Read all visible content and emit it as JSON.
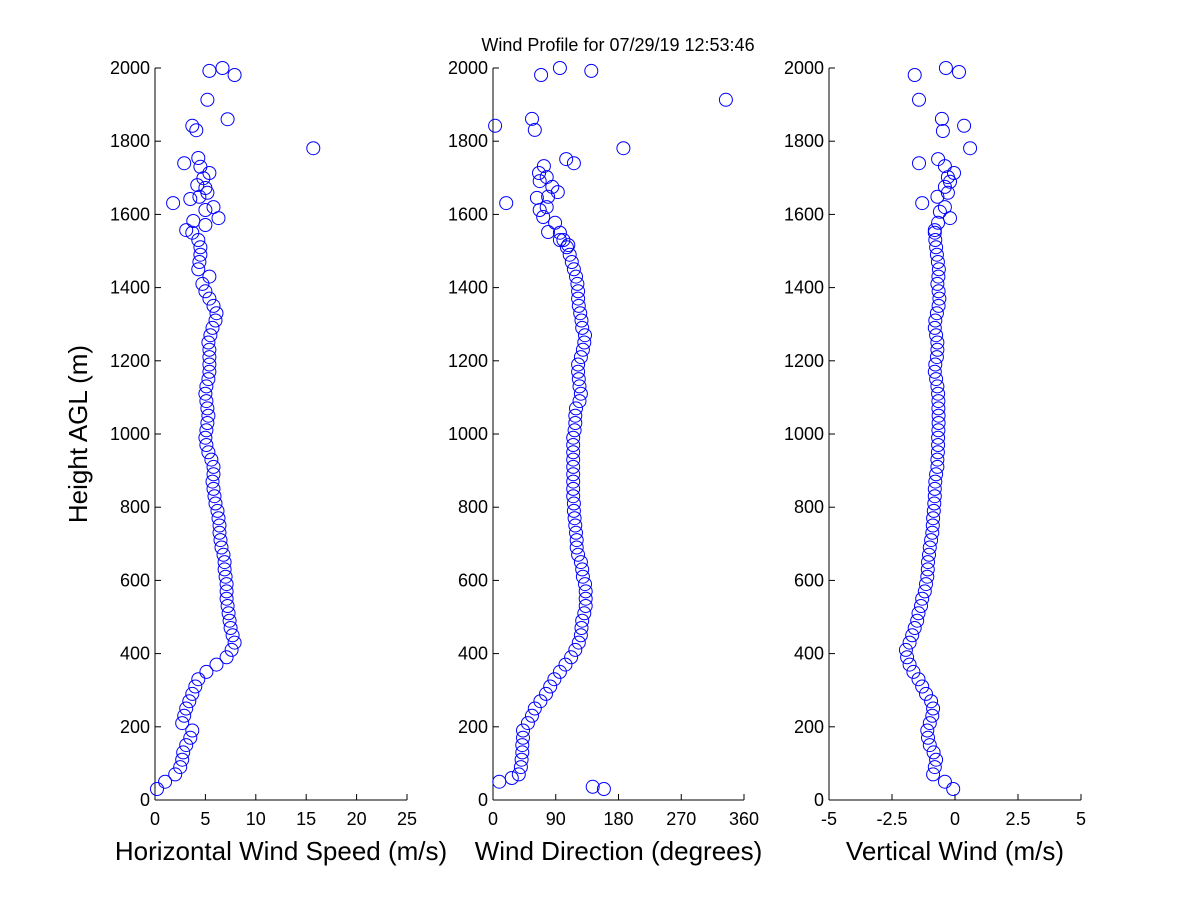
{
  "chart_data": [
    {
      "type": "scatter",
      "title": "Wind Profile for  07/29/19 12:53:46",
      "xlabel": "Horizontal Wind Speed (m/s)",
      "ylabel": "Height AGL (m)",
      "xlim": [
        0,
        25
      ],
      "ylim": [
        0,
        2000
      ],
      "xticks": [
        0,
        5,
        10,
        15,
        20,
        25
      ],
      "xtick_labels": [
        "0",
        "5",
        "10",
        "15",
        "20",
        "25"
      ],
      "yticks": [
        0,
        200,
        400,
        600,
        800,
        1000,
        1200,
        1400,
        1600,
        1800,
        2000
      ],
      "ytick_labels": [
        "0",
        "200",
        "400",
        "600",
        "800",
        "1000",
        "1200",
        "1400",
        "1600",
        "1800",
        "2000"
      ],
      "marker": "open-circle",
      "color": "#0000ff",
      "heights": [
        30,
        50,
        70,
        90,
        110,
        130,
        150,
        170,
        190,
        210,
        230,
        250,
        270,
        290,
        310,
        330,
        350,
        370,
        390,
        410,
        430,
        450,
        470,
        490,
        510,
        530,
        550,
        570,
        590,
        610,
        630,
        650,
        670,
        690,
        710,
        730,
        750,
        770,
        790,
        810,
        830,
        850,
        870,
        890,
        910,
        930,
        950,
        970,
        990,
        1010,
        1030,
        1050,
        1070,
        1090,
        1110,
        1130,
        1150,
        1170,
        1190,
        1210,
        1230,
        1250,
        1270,
        1290,
        1310,
        1330,
        1350,
        1370,
        1390,
        1410,
        1430,
        1450,
        1470,
        1490,
        1510,
        1530,
        1550
      ],
      "values": [
        0.2,
        1.0,
        2.0,
        2.5,
        2.7,
        2.8,
        3.1,
        3.5,
        3.7,
        2.7,
        2.9,
        3.1,
        3.4,
        3.7,
        4.0,
        4.3,
        5.1,
        6.1,
        7.1,
        7.6,
        7.9,
        7.7,
        7.5,
        7.4,
        7.3,
        7.2,
        7.1,
        7.1,
        7.1,
        7.0,
        6.9,
        6.9,
        6.8,
        6.6,
        6.5,
        6.4,
        6.4,
        6.3,
        6.2,
        6.0,
        5.9,
        5.8,
        5.7,
        5.8,
        5.8,
        5.6,
        5.3,
        5.1,
        5.0,
        5.1,
        5.2,
        5.3,
        5.2,
        5.1,
        5.0,
        5.1,
        5.3,
        5.4,
        5.4,
        5.4,
        5.4,
        5.3,
        5.5,
        5.7,
        6.0,
        6.1,
        5.8,
        5.4,
        5.0,
        4.7,
        5.4,
        4.3,
        4.4,
        4.5,
        4.5,
        4.3,
        3.7
      ],
      "extra_points": [
        [
          5.4,
          1992
        ],
        [
          6.7,
          2000
        ],
        [
          7.9,
          1981
        ],
        [
          5.2,
          1913
        ],
        [
          7.2,
          1860
        ],
        [
          3.7,
          1842
        ],
        [
          4.1,
          1830
        ],
        [
          15.7,
          1781
        ],
        [
          2.9,
          1740
        ],
        [
          4.3,
          1754
        ],
        [
          4.5,
          1730
        ],
        [
          5.4,
          1713
        ],
        [
          4.8,
          1699
        ],
        [
          4.2,
          1680
        ],
        [
          5.0,
          1672
        ],
        [
          5.2,
          1659
        ],
        [
          3.5,
          1642
        ],
        [
          4.4,
          1648
        ],
        [
          1.8,
          1631
        ],
        [
          5.8,
          1620
        ],
        [
          5.0,
          1612
        ],
        [
          6.3,
          1590
        ],
        [
          3.8,
          1582
        ],
        [
          5.0,
          1571
        ],
        [
          3.1,
          1557
        ]
      ]
    },
    {
      "type": "scatter",
      "xlabel": "Wind Direction (degrees)",
      "xlim": [
        0,
        360
      ],
      "ylim": [
        0,
        2000
      ],
      "xticks": [
        0,
        90,
        180,
        270,
        360
      ],
      "xtick_labels": [
        "0",
        "90",
        "180",
        "270",
        "360"
      ],
      "yticks": [
        0,
        200,
        400,
        600,
        800,
        1000,
        1200,
        1400,
        1600,
        1800,
        2000
      ],
      "ytick_labels": [
        "0",
        "200",
        "400",
        "600",
        "800",
        "1000",
        "1200",
        "1400",
        "1600",
        "1800",
        "2000"
      ],
      "marker": "open-circle",
      "color": "#0000ff",
      "values": [
        159,
        9,
        37,
        40,
        41,
        42,
        42,
        43,
        43,
        50,
        56,
        60,
        68,
        76,
        82,
        88,
        96,
        104,
        112,
        118,
        123,
        126,
        127,
        128,
        131,
        133,
        133,
        133,
        132,
        129,
        128,
        126,
        122,
        120,
        120,
        119,
        118,
        117,
        116,
        116,
        115,
        115,
        115,
        115,
        115,
        115,
        115,
        115,
        115,
        117,
        118,
        118,
        119,
        124,
        126,
        124,
        123,
        122,
        122,
        126,
        129,
        131,
        132,
        128,
        127,
        125,
        123,
        122,
        122,
        121,
        119,
        116,
        113,
        110,
        106,
        101,
        96
      ],
      "extra_points": [
        [
          143,
          36
        ],
        [
          27,
          60
        ],
        [
          69,
          1981
        ],
        [
          96,
          2000
        ],
        [
          141,
          1992
        ],
        [
          334,
          1913
        ],
        [
          56,
          1861
        ],
        [
          60,
          1831
        ],
        [
          3,
          1842
        ],
        [
          187,
          1781
        ],
        [
          105,
          1751
        ],
        [
          116,
          1740
        ],
        [
          73,
          1732
        ],
        [
          66,
          1713
        ],
        [
          77,
          1702
        ],
        [
          67,
          1691
        ],
        [
          85,
          1675
        ],
        [
          93,
          1661
        ],
        [
          79,
          1648
        ],
        [
          63,
          1645
        ],
        [
          19,
          1631
        ],
        [
          77,
          1620
        ],
        [
          67,
          1612
        ],
        [
          72,
          1593
        ],
        [
          89,
          1577
        ],
        [
          79,
          1552
        ],
        [
          96,
          1530
        ],
        [
          108,
          1516
        ]
      ]
    },
    {
      "type": "scatter",
      "xlabel": "Vertical Wind (m/s)",
      "xlim": [
        -5,
        5
      ],
      "ylim": [
        0,
        2000
      ],
      "xticks": [
        -5,
        -2.5,
        0,
        2.5,
        5
      ],
      "xtick_labels": [
        "-5",
        "-2.5",
        "0",
        "2.5",
        "5"
      ],
      "yticks": [
        0,
        200,
        400,
        600,
        800,
        1000,
        1200,
        1400,
        1600,
        1800,
        2000
      ],
      "ytick_labels": [
        "0",
        "200",
        "400",
        "600",
        "800",
        "1000",
        "1200",
        "1400",
        "1600",
        "1800",
        "2000"
      ],
      "marker": "open-circle",
      "color": "#0000ff",
      "values": [
        -0.07,
        -0.4,
        -0.87,
        -0.8,
        -0.75,
        -0.85,
        -1.0,
        -1.07,
        -1.1,
        -1.0,
        -0.9,
        -0.87,
        -0.95,
        -1.15,
        -1.3,
        -1.45,
        -1.65,
        -1.8,
        -1.9,
        -1.95,
        -1.8,
        -1.7,
        -1.6,
        -1.5,
        -1.45,
        -1.35,
        -1.3,
        -1.2,
        -1.15,
        -1.1,
        -1.08,
        -1.07,
        -1.03,
        -1.0,
        -0.95,
        -0.9,
        -0.88,
        -0.87,
        -0.84,
        -0.82,
        -0.8,
        -0.8,
        -0.78,
        -0.75,
        -0.7,
        -0.7,
        -0.68,
        -0.67,
        -0.67,
        -0.66,
        -0.65,
        -0.65,
        -0.66,
        -0.66,
        -0.67,
        -0.7,
        -0.75,
        -0.8,
        -0.78,
        -0.72,
        -0.7,
        -0.7,
        -0.75,
        -0.8,
        -0.78,
        -0.72,
        -0.65,
        -0.62,
        -0.65,
        -0.7,
        -0.66,
        -0.64,
        -0.68,
        -0.72,
        -0.75,
        -0.78,
        -0.8
      ],
      "extra_points": [
        [
          -0.36,
          2000
        ],
        [
          0.16,
          1989
        ],
        [
          -1.6,
          1981
        ],
        [
          -1.43,
          1913
        ],
        [
          -0.52,
          1861
        ],
        [
          0.36,
          1842
        ],
        [
          -0.48,
          1828
        ],
        [
          0.6,
          1781
        ],
        [
          -0.67,
          1751
        ],
        [
          -1.43,
          1740
        ],
        [
          -0.4,
          1732
        ],
        [
          -0.04,
          1713
        ],
        [
          -0.28,
          1702
        ],
        [
          -0.2,
          1689
        ],
        [
          -0.4,
          1675
        ],
        [
          -0.28,
          1659
        ],
        [
          -0.7,
          1648
        ],
        [
          -1.3,
          1631
        ],
        [
          -0.4,
          1620
        ],
        [
          -0.6,
          1607
        ],
        [
          -0.2,
          1590
        ],
        [
          -0.67,
          1577
        ],
        [
          -0.8,
          1557
        ]
      ]
    }
  ]
}
